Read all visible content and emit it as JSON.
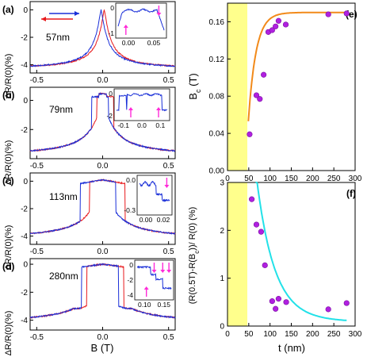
{
  "colors": {
    "red": "#e8191c",
    "blue": "#1a2fd8",
    "orange": "#f28a1a",
    "cyan": "#22e1e8",
    "yellow": "#ffff8c",
    "purple": "#b020e0",
    "magenta": "#ff2ad8"
  },
  "left_panels": {
    "xlabel": "B (T)",
    "ylabel": "ΔR/R(0)(%)",
    "xticks": [
      "-0.5",
      "0.0",
      "0.5"
    ],
    "panels": [
      {
        "label": "(a)",
        "thickness": "57nm",
        "yticks": [
          "0",
          "-2",
          "-4"
        ],
        "inset": {
          "xticks": [
            "0.00",
            "0.05"
          ],
          "yticks": [
            "0",
            "-1"
          ]
        }
      },
      {
        "label": "(b)",
        "thickness": "79nm",
        "yticks": [
          "0",
          "-2"
        ],
        "inset": {
          "xticks": [
            "-0.1",
            "0.0",
            "0.1"
          ],
          "yticks": [
            "0",
            "-2"
          ]
        }
      },
      {
        "label": "(c)",
        "thickness": "113nm",
        "yticks": [
          "0",
          "-2",
          "-4"
        ],
        "inset": {
          "xticks": [
            "0.00",
            "0.02"
          ],
          "yticks": [
            "0.0",
            "-0.3"
          ]
        }
      },
      {
        "label": "(d)",
        "thickness": "280nm",
        "yticks": [
          "0",
          "-2",
          "-4"
        ],
        "inset": {
          "xticks": [
            "0.10",
            "0.15"
          ],
          "yticks": [
            "0",
            "-2",
            "-4"
          ]
        }
      }
    ]
  },
  "chart_data": [
    {
      "panel": "(e)",
      "type": "scatter",
      "xlabel": "",
      "ylabel": "B_c (T)",
      "xlim": [
        0,
        300
      ],
      "ylim": [
        0,
        0.18
      ],
      "xticks": [
        "0",
        "50",
        "100",
        "150",
        "200",
        "250",
        "300"
      ],
      "yticks": [
        "0.00",
        "0.04",
        "0.08",
        "0.12",
        "0.16"
      ],
      "shaded_x": [
        0,
        48
      ],
      "points": [
        {
          "x": 52,
          "y": 0.039
        },
        {
          "x": 68,
          "y": 0.081
        },
        {
          "x": 76,
          "y": 0.077
        },
        {
          "x": 85,
          "y": 0.103
        },
        {
          "x": 96,
          "y": 0.149
        },
        {
          "x": 105,
          "y": 0.151
        },
        {
          "x": 113,
          "y": 0.155
        },
        {
          "x": 120,
          "y": 0.161
        },
        {
          "x": 137,
          "y": 0.157
        },
        {
          "x": 237,
          "y": 0.168
        },
        {
          "x": 280,
          "y": 0.169
        }
      ],
      "fit": {
        "t0": 45,
        "a": 0.17,
        "b": 0.146,
        "tau": 18
      }
    },
    {
      "panel": "(f)",
      "type": "scatter",
      "xlabel": "t (nm)",
      "ylabel": "(R(0.5T)-R(B_c))/ R(0) (%)",
      "xlim": [
        0,
        300
      ],
      "ylim": [
        0,
        3
      ],
      "xticks": [
        "0",
        "50",
        "100",
        "150",
        "200",
        "250",
        "300"
      ],
      "yticks": [
        "0",
        "1",
        "2",
        "3"
      ],
      "shaded_x": [
        0,
        48
      ],
      "points": [
        {
          "x": 57,
          "y": 2.65
        },
        {
          "x": 68,
          "y": 2.12
        },
        {
          "x": 79,
          "y": 1.97
        },
        {
          "x": 88,
          "y": 1.27
        },
        {
          "x": 105,
          "y": 0.52
        },
        {
          "x": 113,
          "y": 0.36
        },
        {
          "x": 120,
          "y": 0.57
        },
        {
          "x": 138,
          "y": 0.5
        },
        {
          "x": 237,
          "y": 0.35
        },
        {
          "x": 280,
          "y": 0.48
        }
      ],
      "fit": {
        "A": 9.7,
        "B": 0.0
      }
    }
  ]
}
